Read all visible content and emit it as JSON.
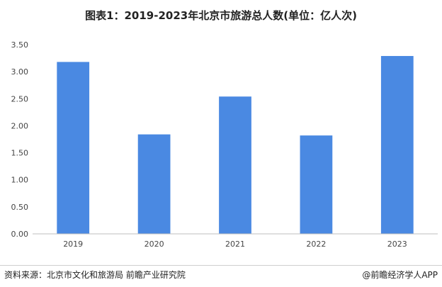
{
  "page": {
    "title": "图表1：2019-2023年北京市旅游总人数(单位：亿人次)",
    "source": "资料来源：北京市文化和旅游局 前瞻产业研究院",
    "brand": "@前瞻经济学人APP"
  },
  "chart_data": {
    "type": "bar",
    "title": "图表1：2019-2023年北京市旅游总人数(单位：亿人次)",
    "categories": [
      "2019",
      "2020",
      "2021",
      "2022",
      "2023"
    ],
    "values": [
      3.18,
      1.84,
      2.54,
      1.82,
      3.29
    ],
    "ylim": [
      0,
      3.5
    ],
    "yticks": [
      "0.00",
      "0.50",
      "1.00",
      "1.50",
      "2.00",
      "2.50",
      "3.00",
      "3.50"
    ],
    "xlabel": "",
    "ylabel": "",
    "grid": false,
    "bar_color": "#4a89e2"
  }
}
